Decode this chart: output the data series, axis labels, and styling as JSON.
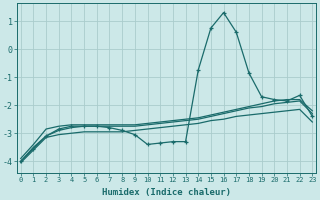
{
  "x": [
    0,
    1,
    2,
    3,
    4,
    5,
    6,
    7,
    8,
    9,
    10,
    11,
    12,
    13,
    14,
    15,
    16,
    17,
    18,
    19,
    20,
    21,
    22,
    23
  ],
  "line_wavy": [
    -4.0,
    -3.55,
    -3.1,
    -2.85,
    -2.75,
    -2.75,
    -2.75,
    -2.8,
    -2.9,
    -3.05,
    -3.4,
    -3.35,
    -3.3,
    -3.3,
    -0.75,
    0.75,
    1.3,
    0.6,
    -0.85,
    -1.7,
    -1.8,
    -1.85,
    -1.65,
    -2.4
  ],
  "line_upper": [
    -3.9,
    -3.4,
    -2.85,
    -2.75,
    -2.7,
    -2.7,
    -2.7,
    -2.7,
    -2.7,
    -2.7,
    -2.65,
    -2.6,
    -2.55,
    -2.5,
    -2.45,
    -2.35,
    -2.25,
    -2.15,
    -2.05,
    -1.95,
    -1.85,
    -1.8,
    -1.8,
    -2.2
  ],
  "line_lower": [
    -4.0,
    -3.5,
    -3.1,
    -2.9,
    -2.8,
    -2.75,
    -2.75,
    -2.75,
    -2.75,
    -2.75,
    -2.7,
    -2.65,
    -2.6,
    -2.55,
    -2.5,
    -2.4,
    -2.3,
    -2.2,
    -2.1,
    -2.05,
    -1.95,
    -1.9,
    -1.85,
    -2.3
  ],
  "line_bottom": [
    -4.05,
    -3.6,
    -3.15,
    -3.05,
    -3.0,
    -2.95,
    -2.95,
    -2.95,
    -2.95,
    -2.9,
    -2.85,
    -2.8,
    -2.75,
    -2.7,
    -2.65,
    -2.55,
    -2.5,
    -2.4,
    -2.35,
    -2.3,
    -2.25,
    -2.2,
    -2.15,
    -2.6
  ],
  "bg_color": "#cce8e8",
  "line_color": "#1a6b6b",
  "grid_color": "#aacccc",
  "xlabel": "Humidex (Indice chaleur)",
  "yticks": [
    -4,
    -3,
    -2,
    -1,
    0,
    1
  ],
  "xticks": [
    0,
    1,
    2,
    3,
    4,
    5,
    6,
    7,
    8,
    9,
    10,
    11,
    12,
    13,
    14,
    15,
    16,
    17,
    18,
    19,
    20,
    21,
    22,
    23
  ],
  "ylim": [
    -4.4,
    1.65
  ],
  "xlim": [
    -0.3,
    23.3
  ]
}
